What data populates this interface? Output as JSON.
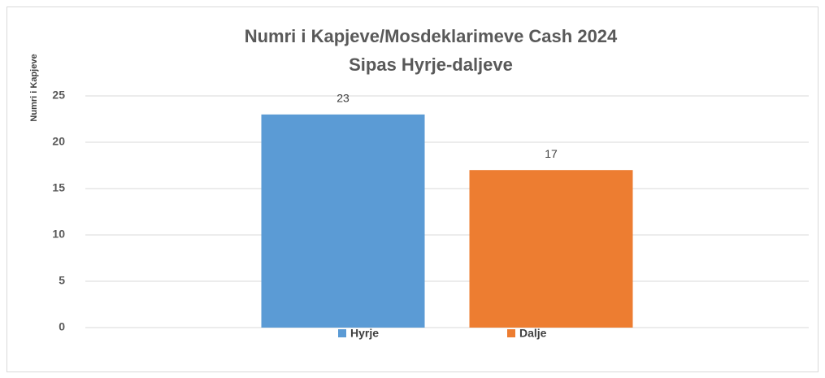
{
  "chart_data": {
    "type": "bar",
    "title": [
      "Numri i Kapjeve/Mosdeklarimeve Cash 2024",
      "Sipas Hyrje-daljeve"
    ],
    "y_label": "Numri i Kapjeve",
    "categories": [
      null
    ],
    "series": [
      {
        "name": "Hyrje",
        "color": "#5b9bd5",
        "values": [
          23
        ]
      },
      {
        "name": "Dalje",
        "color": "#ed7d31",
        "values": [
          17
        ]
      }
    ],
    "ylim": [
      0,
      25
    ],
    "yticks": [
      0,
      5,
      10,
      15,
      20,
      25
    ],
    "grid": true,
    "legend": "bottom"
  }
}
